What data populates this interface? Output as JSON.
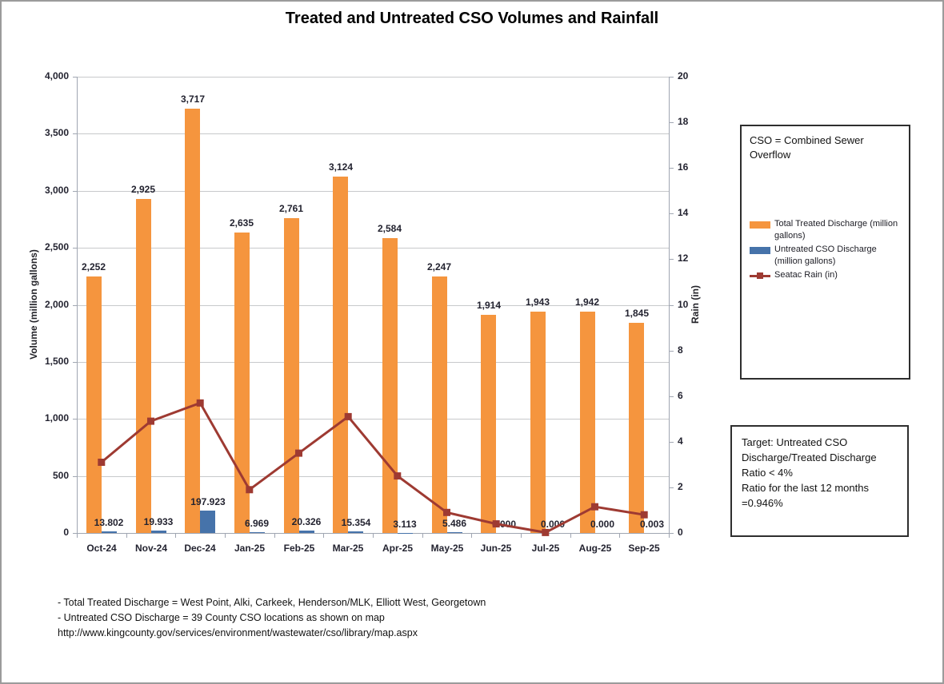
{
  "title": "Treated and Untreated CSO Volumes and Rainfall",
  "chart_data": {
    "type": "bar",
    "subtype": "combo-bar-line",
    "categories": [
      "Oct-24",
      "Nov-24",
      "Dec-24",
      "Jan-25",
      "Feb-25",
      "Mar-25",
      "Apr-25",
      "May-25",
      "Jun-25",
      "Jul-25",
      "Aug-25",
      "Sep-25"
    ],
    "series": [
      {
        "name": "Total Treated Discharge (million gallons)",
        "type": "bar",
        "axis": "left",
        "color": "#F5953E",
        "values": [
          2252,
          2925,
          3717,
          2635,
          2761,
          3124,
          2584,
          2247,
          1914,
          1943,
          1942,
          1845
        ]
      },
      {
        "name": "Untreated CSO Discharge (million gallons)",
        "type": "bar",
        "axis": "left",
        "color": "#4673AA",
        "values": [
          13.802,
          19.933,
          197.923,
          6.969,
          20.326,
          15.354,
          3.113,
          5.486,
          0.0,
          0.0,
          0.0,
          0.003
        ]
      },
      {
        "name": "Seatac Rain (in)",
        "type": "line",
        "axis": "right",
        "color": "#9E3A32",
        "values": [
          3.1,
          4.9,
          5.7,
          1.9,
          3.5,
          5.1,
          2.5,
          0.9,
          0.4,
          0.02,
          1.15,
          0.8
        ]
      }
    ],
    "left_axis": {
      "title": "Volume (million gallons)",
      "min": 0,
      "max": 4000,
      "step": 500
    },
    "right_axis": {
      "title": "Rain  (in)",
      "min": 0,
      "max": 20,
      "step": 2
    },
    "grid": true,
    "legend_position": "right-box"
  },
  "legend_box": {
    "note": "CSO = Combined Sewer Overflow",
    "items": [
      {
        "label": "Total Treated Discharge (million gallons)",
        "swatch": "orange-bar"
      },
      {
        "label": "Untreated CSO Discharge (million gallons)",
        "swatch": "blue-bar"
      },
      {
        "label": "Seatac Rain (in)",
        "swatch": "dark-red-line-marker"
      }
    ]
  },
  "target_box": {
    "text": "Target: Untreated CSO\nDischarge/Treated Discharge\nRatio < 4%\nRatio for the last 12 months\n=0.946%"
  },
  "footnotes": {
    "line1": "- Total Treated Discharge = West Point, Alki, Carkeek, Henderson/MLK, Elliott West, Georgetown",
    "line2": "- Untreated CSO Discharge = 39  County CSO locations as shown on map",
    "url": "http://www.kingcounty.gov/services/environment/wastewater/cso/library/map.aspx"
  },
  "colors": {
    "treated_bar": "#F5953E",
    "untreated_bar": "#4673AA",
    "rain_line": "#9E3A32",
    "gridline": "#C7C9CB",
    "axis_line": "#A0A6B2",
    "text": "#232330",
    "outer_frame": "#9B9B9B"
  }
}
